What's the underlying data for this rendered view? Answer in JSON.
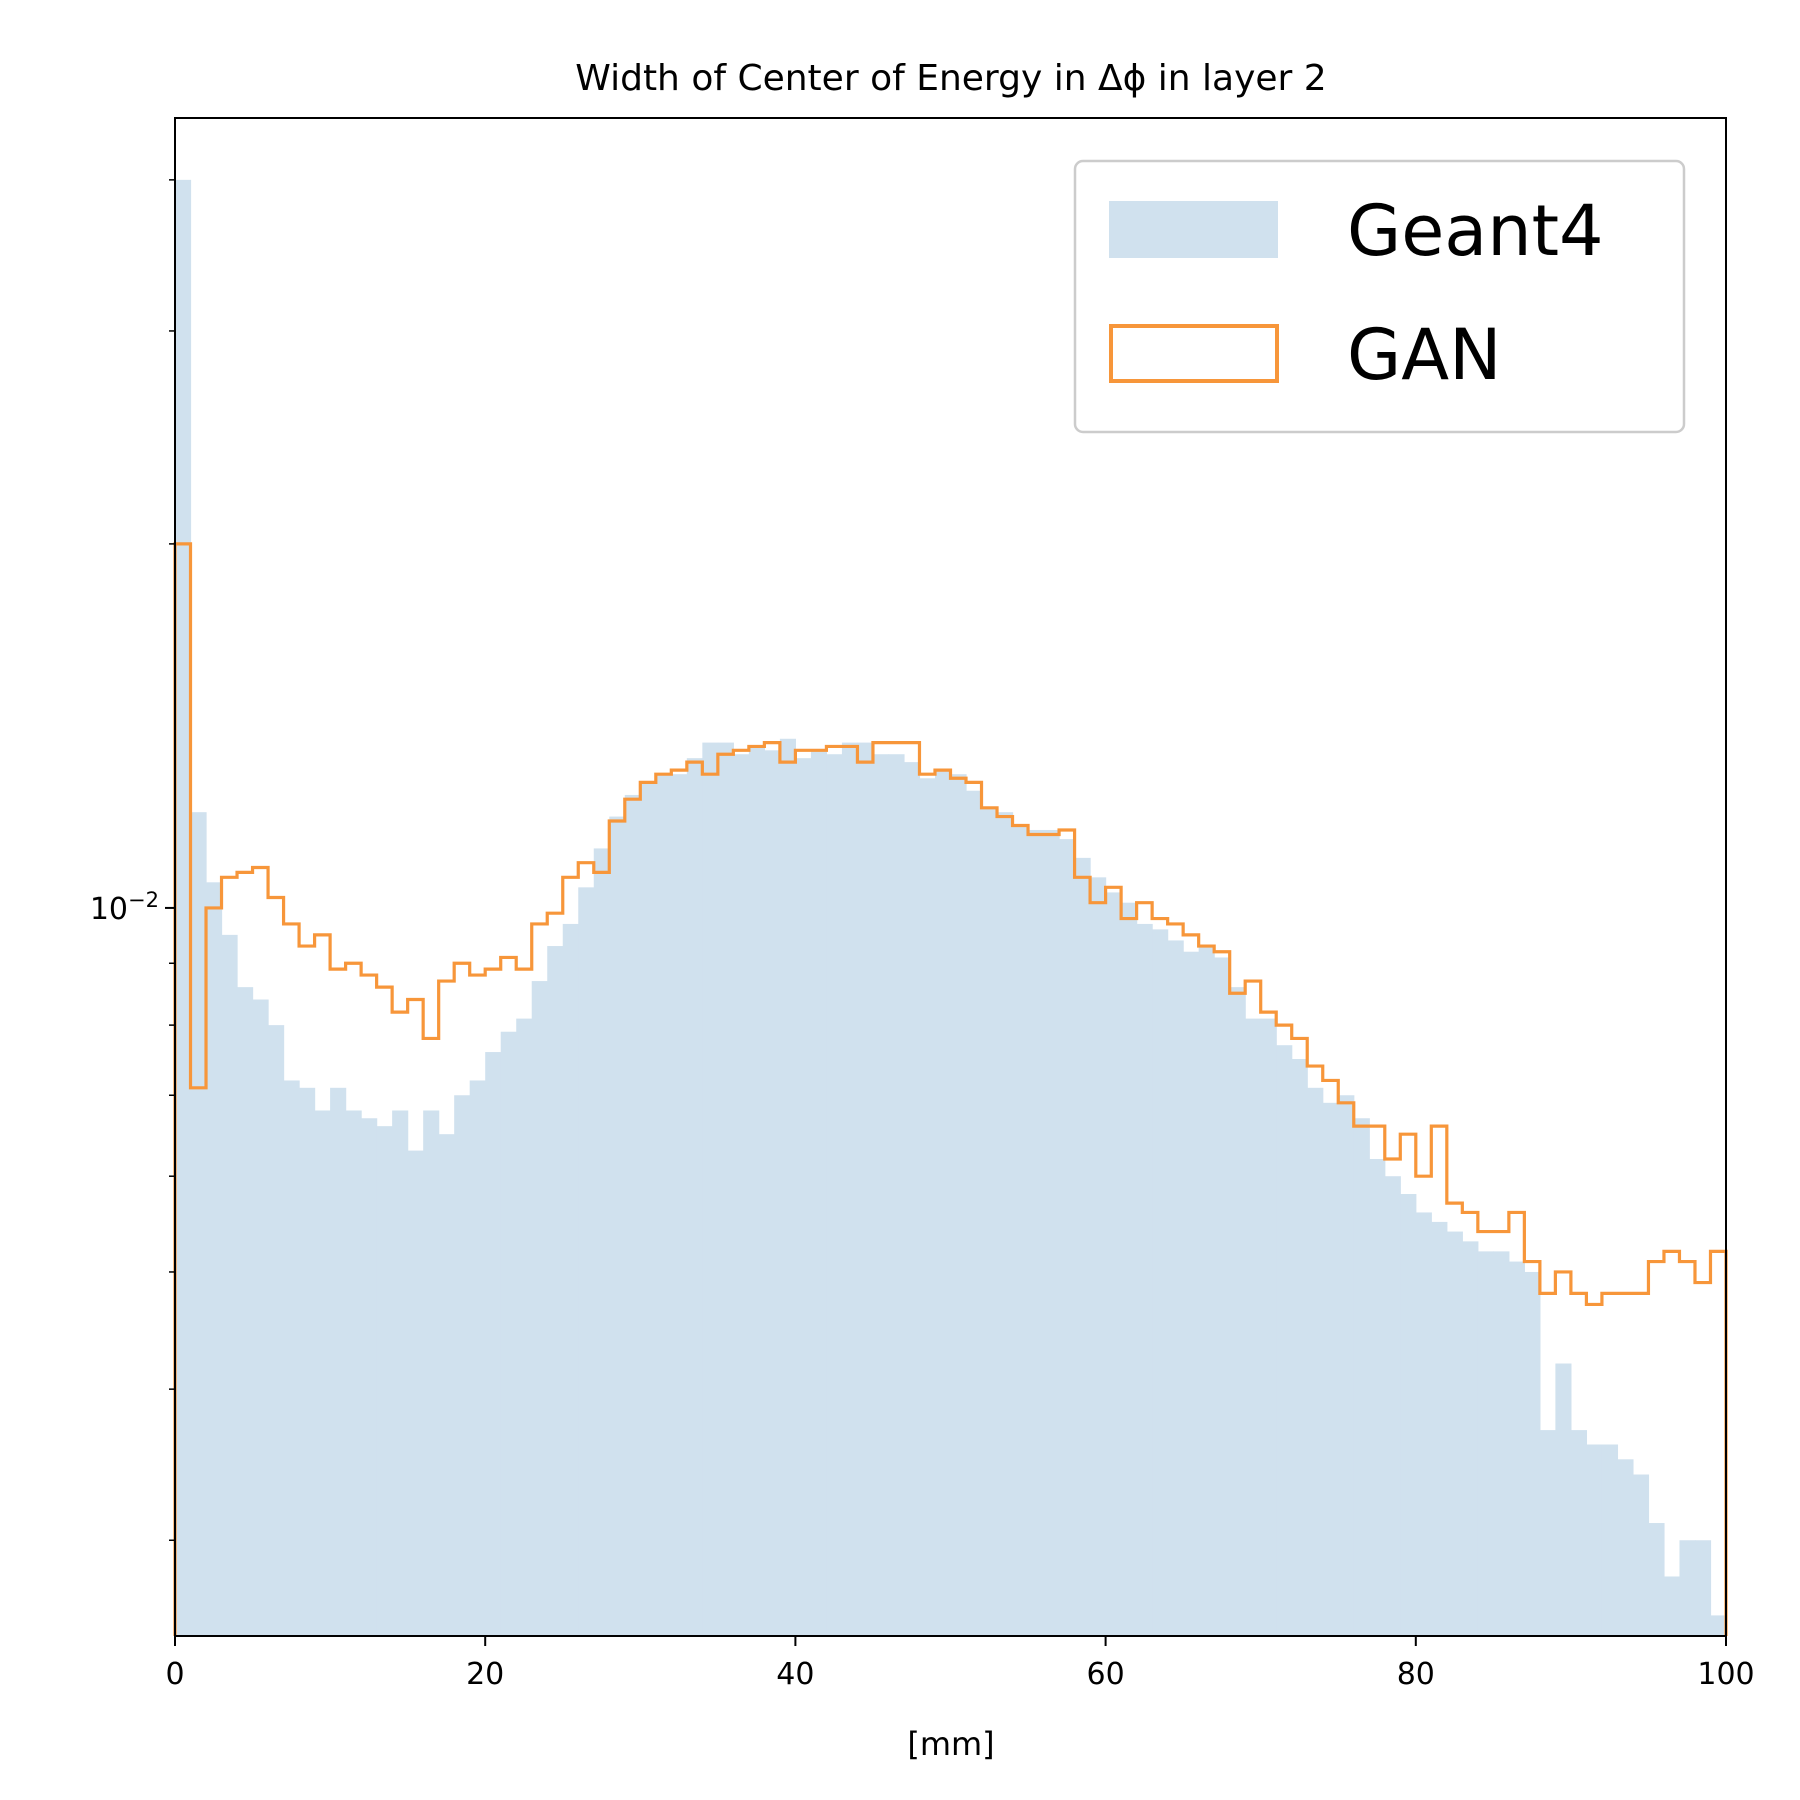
{
  "chart_data": {
    "type": "histogram",
    "title": "Width of Center of Energy in Δϕ in layer 2",
    "xlabel": "[mm]",
    "ylabel": "",
    "xlim": [
      0,
      100
    ],
    "ylim": [
      0.0025,
      0.045
    ],
    "yscale": "log",
    "x_ticks": [
      0,
      20,
      40,
      60,
      80,
      100
    ],
    "y_tick_label": {
      "base": "10",
      "exponent": "−2",
      "value": 0.01
    },
    "bin_width": 1,
    "legend": {
      "position": "top-right",
      "entries": [
        "Geant4",
        "GAN"
      ]
    },
    "colors": {
      "geant4": "#d0e1ee",
      "gan": "#f7963a"
    },
    "series": [
      {
        "name": "Geant4",
        "style": "filled",
        "values": [
          0.04,
          0.012,
          0.0105,
          0.0095,
          0.0086,
          0.0084,
          0.008,
          0.0072,
          0.0071,
          0.0068,
          0.0071,
          0.0068,
          0.0067,
          0.0066,
          0.0068,
          0.0063,
          0.0068,
          0.0065,
          0.007,
          0.0072,
          0.0076,
          0.0079,
          0.0081,
          0.0087,
          0.0093,
          0.0097,
          0.0104,
          0.0112,
          0.0119,
          0.0124,
          0.0127,
          0.0129,
          0.0129,
          0.0133,
          0.0137,
          0.0137,
          0.0134,
          0.0136,
          0.0135,
          0.0138,
          0.0133,
          0.0135,
          0.0134,
          0.0137,
          0.0137,
          0.0134,
          0.0134,
          0.0132,
          0.0128,
          0.013,
          0.0129,
          0.0125,
          0.0121,
          0.012,
          0.0117,
          0.0116,
          0.0116,
          0.0114,
          0.011,
          0.0106,
          0.0103,
          0.0101,
          0.0097,
          0.0096,
          0.0094,
          0.0092,
          0.0093,
          0.0091,
          0.0086,
          0.0081,
          0.0081,
          0.0077,
          0.0075,
          0.0071,
          0.0069,
          0.007,
          0.0067,
          0.0062,
          0.006,
          0.0058,
          0.0056,
          0.0055,
          0.0054,
          0.0053,
          0.0052,
          0.0052,
          0.0051,
          0.005,
          0.0037,
          0.0042,
          0.0037,
          0.0036,
          0.0036,
          0.0035,
          0.0034,
          0.0031,
          0.0028,
          0.003,
          0.003,
          0.0026
        ]
      },
      {
        "name": "GAN",
        "style": "step",
        "values": [
          0.02,
          0.0071,
          0.01,
          0.0106,
          0.0107,
          0.0108,
          0.0102,
          0.0097,
          0.0093,
          0.0095,
          0.0089,
          0.009,
          0.0088,
          0.0086,
          0.0082,
          0.0084,
          0.0078,
          0.0087,
          0.009,
          0.0088,
          0.0089,
          0.0091,
          0.0089,
          0.0097,
          0.0099,
          0.0106,
          0.0109,
          0.0107,
          0.0118,
          0.0123,
          0.0127,
          0.0129,
          0.013,
          0.0132,
          0.0129,
          0.0134,
          0.0135,
          0.0136,
          0.0137,
          0.0132,
          0.0135,
          0.0135,
          0.0136,
          0.0136,
          0.0132,
          0.0137,
          0.0137,
          0.0137,
          0.0129,
          0.013,
          0.0128,
          0.0127,
          0.0121,
          0.0119,
          0.0117,
          0.0115,
          0.0115,
          0.0116,
          0.0106,
          0.0101,
          0.0104,
          0.0098,
          0.0101,
          0.0098,
          0.0097,
          0.0095,
          0.0093,
          0.0092,
          0.0085,
          0.0087,
          0.0082,
          0.008,
          0.0078,
          0.0074,
          0.0072,
          0.0069,
          0.0066,
          0.0066,
          0.0062,
          0.0065,
          0.006,
          0.0066,
          0.0057,
          0.0056,
          0.0054,
          0.0054,
          0.0056,
          0.0051,
          0.0048,
          0.005,
          0.0048,
          0.0047,
          0.0048,
          0.0048,
          0.0048,
          0.0051,
          0.0052,
          0.0051,
          0.0049,
          0.0052
        ]
      }
    ]
  }
}
